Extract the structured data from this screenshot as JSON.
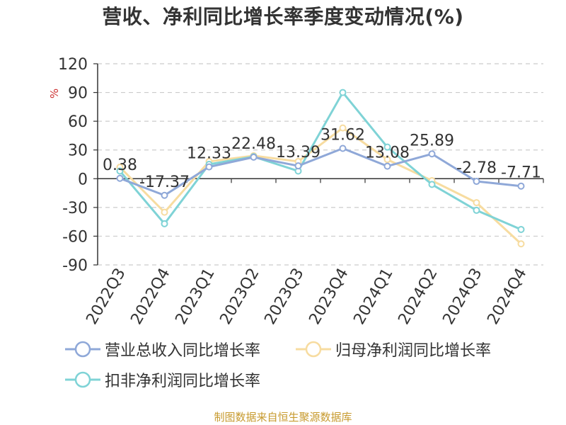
{
  "title": "营收、净利同比增长率季度变动情况(%)",
  "source": "制图数据来自恒生聚源数据库",
  "chart_data": {
    "type": "line",
    "title": "营收、净利同比增长率季度变动情况(%)",
    "ylabel": "%",
    "ylim": [
      -90,
      120
    ],
    "yticks": [
      120,
      90,
      60,
      30,
      0,
      -30,
      -60,
      -90
    ],
    "yticks_text": [
      "120",
      "90",
      "60",
      "30",
      "0",
      "-30",
      "-60",
      "-90"
    ],
    "grid": true,
    "legend_position": "bottom",
    "categories": [
      "2022Q3",
      "2022Q4",
      "2023Q1",
      "2023Q2",
      "2023Q3",
      "2023Q4",
      "2024Q1",
      "2024Q2",
      "2024Q3",
      "2024Q4"
    ],
    "series": [
      {
        "name": "营业总收入同比增长率",
        "color": "#8fa8d8",
        "values": [
          0.38,
          -17.37,
          12.33,
          22.48,
          13.39,
          31.62,
          13.08,
          25.89,
          -2.78,
          -7.71
        ],
        "labels": [
          "0.38",
          "-17.37",
          "12.33",
          "22.48",
          "13.39",
          "31.62",
          "13.08",
          "25.89",
          "-2.78",
          "-7.71"
        ]
      },
      {
        "name": "归母净利润同比增长率",
        "color": "#f7dca0",
        "values": [
          12,
          -35,
          18,
          24,
          18,
          53,
          20,
          -2,
          -25,
          -68
        ]
      },
      {
        "name": "扣非净利润同比增长率",
        "color": "#7fd3d6",
        "values": [
          8,
          -47,
          15,
          23,
          8,
          90,
          33,
          -6,
          -33,
          -53
        ]
      }
    ]
  }
}
